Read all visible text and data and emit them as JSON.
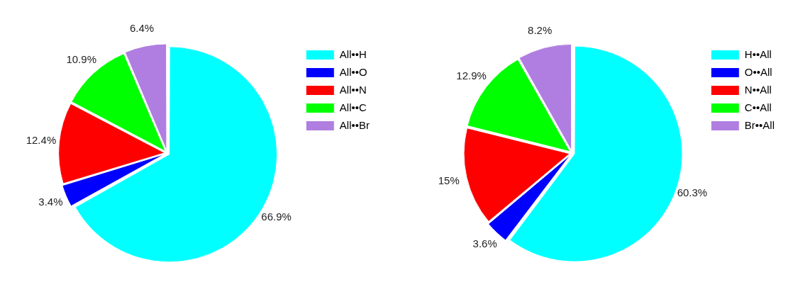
{
  "chart_data": [
    {
      "type": "pie",
      "categories": [
        "All••H",
        "All••O",
        "All••N",
        "All••C",
        "All••Br"
      ],
      "values": [
        66.9,
        3.4,
        12.4,
        10.9,
        6.4
      ],
      "value_labels": [
        "66.9%",
        "3.4%",
        "12.4%",
        "10.9%",
        "6.4%"
      ],
      "colors": [
        "#00ffff",
        "#0000ff",
        "#ff0000",
        "#00ff00",
        "#b07ee0"
      ],
      "legend": "top right"
    },
    {
      "type": "pie",
      "categories": [
        "H••All",
        "O••All",
        "N••All",
        "C••All",
        "Br••All"
      ],
      "values": [
        60.3,
        3.6,
        15,
        12.9,
        8.2
      ],
      "value_labels": [
        "60.3%",
        "3.6%",
        "15%",
        "12.9%",
        "8.2%"
      ],
      "colors": [
        "#00ffff",
        "#0000ff",
        "#ff0000",
        "#00ff00",
        "#b07ee0"
      ],
      "legend": "top right"
    }
  ]
}
